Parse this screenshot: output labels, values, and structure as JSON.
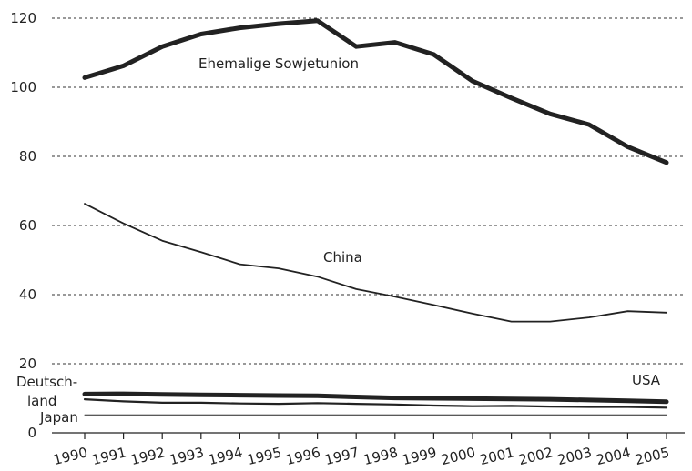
{
  "chart_data": {
    "type": "line",
    "x": [
      "1990",
      "1991",
      "1992",
      "1993",
      "1994",
      "1995",
      "1996",
      "1997",
      "1998",
      "1999",
      "2000",
      "2001",
      "2002",
      "2003",
      "2004",
      "2005"
    ],
    "ylim": [
      0,
      120
    ],
    "yticks": [
      0,
      20,
      40,
      60,
      80,
      100,
      120
    ],
    "grid": true,
    "series": [
      {
        "name": "Ehemalige Sowjetunion",
        "values": [
          102.8,
          106.2,
          111.8,
          115.4,
          117.2,
          118.4,
          119.3,
          111.8,
          113.0,
          109.5,
          101.8,
          96.9,
          92.3,
          89.2,
          82.8,
          78.2
        ]
      },
      {
        "name": "China",
        "values": [
          66.3,
          60.6,
          55.6,
          52.3,
          48.8,
          47.6,
          45.2,
          41.6,
          39.4,
          37.0,
          34.5,
          32.2,
          32.2,
          33.4,
          35.2,
          34.8
        ]
      },
      {
        "name": "USA",
        "values": [
          11.2,
          11.3,
          11.1,
          11.0,
          10.9,
          10.8,
          10.7,
          10.4,
          10.1,
          10.0,
          9.9,
          9.8,
          9.7,
          9.5,
          9.3,
          9.0
        ]
      },
      {
        "name": "Deutsch-land",
        "values": [
          9.7,
          9.1,
          8.7,
          8.7,
          8.5,
          8.4,
          8.6,
          8.4,
          8.2,
          7.9,
          7.7,
          7.8,
          7.6,
          7.5,
          7.5,
          7.3
        ]
      },
      {
        "name": "Japan",
        "values": [
          5.2,
          5.2,
          5.2,
          5.2,
          5.2,
          5.2,
          5.2,
          5.2,
          5.2,
          5.2,
          5.2,
          5.2,
          5.2,
          5.2,
          5.2,
          5.2
        ]
      }
    ],
    "labels": {
      "sowjet": "Ehemalige Sowjetunion",
      "china": "China",
      "usa": "USA",
      "deutsch1": "Deutsch-",
      "deutsch2": "land",
      "japan": "Japan"
    }
  }
}
